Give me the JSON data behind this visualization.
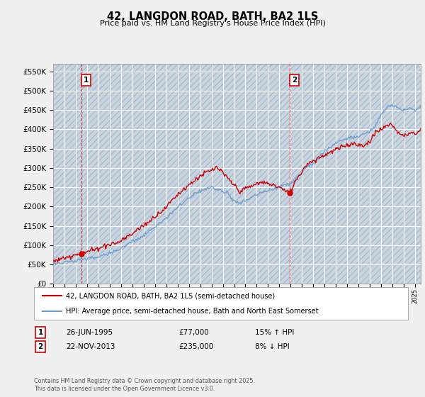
{
  "title": "42, LANGDON ROAD, BATH, BA2 1LS",
  "subtitle": "Price paid vs. HM Land Registry's House Price Index (HPI)",
  "ylim": [
    0,
    570000
  ],
  "yticks": [
    0,
    50000,
    100000,
    150000,
    200000,
    250000,
    300000,
    350000,
    400000,
    450000,
    500000,
    550000
  ],
  "xlim_start": 1993,
  "xlim_end": 2025.5,
  "sale1_date": 1995.49,
  "sale1_price": 77000,
  "sale2_date": 2013.9,
  "sale2_price": 235000,
  "red_vline_dates": [
    1995.49,
    2013.9
  ],
  "legend_line1": "42, LANGDON ROAD, BATH, BA2 1LS (semi-detached house)",
  "legend_line2": "HPI: Average price, semi-detached house, Bath and North East Somerset",
  "copyright": "Contains HM Land Registry data © Crown copyright and database right 2025.\nThis data is licensed under the Open Government Licence v3.0.",
  "bg_color": "#f0f0f0",
  "plot_bg_color": "#dce6f0",
  "red_line_color": "#cc0000",
  "blue_line_color": "#6699cc",
  "vline_color": "#cc0000",
  "grid_color": "#ffffff",
  "hatch_color": "#c8d4e0"
}
